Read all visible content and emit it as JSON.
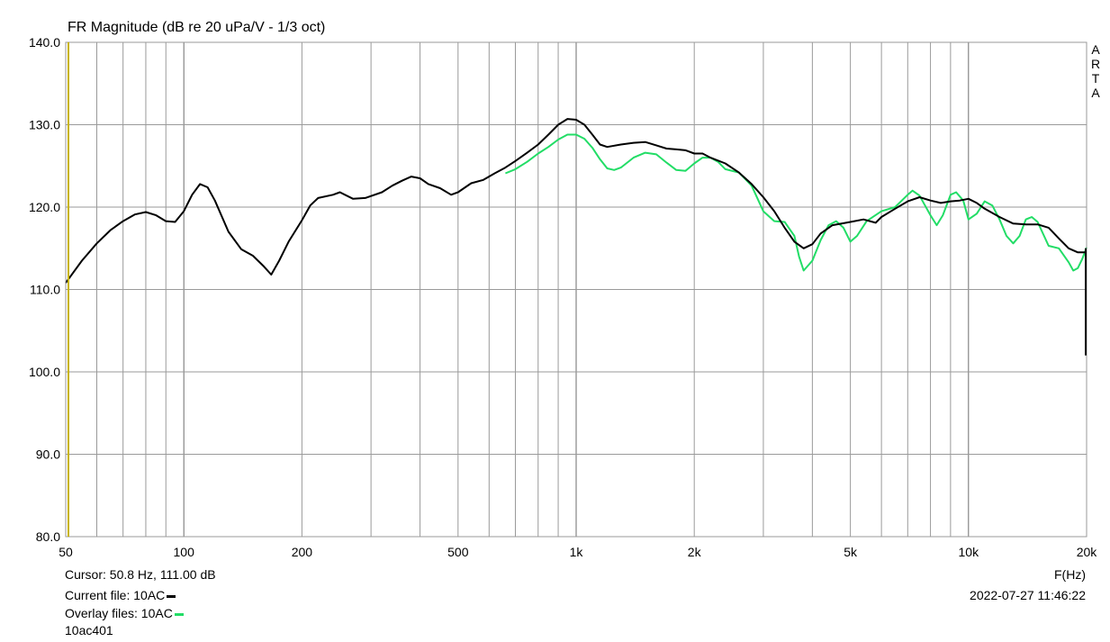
{
  "chart_data": {
    "type": "line",
    "title": "FR Magnitude (dB re 20 uPa/V - 1/3 oct)",
    "xlabel": "F(Hz)",
    "ylabel": "",
    "x_scale": "log",
    "xlim": [
      50,
      20000
    ],
    "ylim": [
      80,
      140
    ],
    "grid": true,
    "y_ticks": [
      "140.0",
      "130.0",
      "120.0",
      "110.0",
      "100.0",
      "90.0",
      "80.0"
    ],
    "x_ticks": [
      "50",
      "100",
      "200",
      "500",
      "1k",
      "2k",
      "5k",
      "10k",
      "20k"
    ],
    "series": [
      {
        "name": "10AC",
        "color": "#000000",
        "points": [
          [
            50,
            110.8
          ],
          [
            55,
            113.5
          ],
          [
            60,
            115.6
          ],
          [
            65,
            117.2
          ],
          [
            70,
            118.3
          ],
          [
            75,
            119.1
          ],
          [
            80,
            119.4
          ],
          [
            85,
            119.0
          ],
          [
            90,
            118.3
          ],
          [
            95,
            118.2
          ],
          [
            100,
            119.5
          ],
          [
            105,
            121.5
          ],
          [
            110,
            122.8
          ],
          [
            115,
            122.4
          ],
          [
            120,
            120.8
          ],
          [
            130,
            117.0
          ],
          [
            140,
            114.9
          ],
          [
            150,
            114.1
          ],
          [
            160,
            112.8
          ],
          [
            167,
            111.8
          ],
          [
            175,
            113.5
          ],
          [
            185,
            115.8
          ],
          [
            200,
            118.4
          ],
          [
            210,
            120.2
          ],
          [
            220,
            121.1
          ],
          [
            240,
            121.5
          ],
          [
            250,
            121.8
          ],
          [
            270,
            121.0
          ],
          [
            290,
            121.1
          ],
          [
            320,
            121.8
          ],
          [
            340,
            122.6
          ],
          [
            360,
            123.2
          ],
          [
            380,
            123.7
          ],
          [
            400,
            123.5
          ],
          [
            420,
            122.8
          ],
          [
            450,
            122.3
          ],
          [
            480,
            121.5
          ],
          [
            500,
            121.8
          ],
          [
            540,
            122.9
          ],
          [
            580,
            123.3
          ],
          [
            620,
            124.1
          ],
          [
            660,
            124.8
          ],
          [
            700,
            125.6
          ],
          [
            750,
            126.6
          ],
          [
            800,
            127.6
          ],
          [
            850,
            128.8
          ],
          [
            900,
            130.0
          ],
          [
            950,
            130.7
          ],
          [
            1000,
            130.6
          ],
          [
            1050,
            130.0
          ],
          [
            1100,
            128.8
          ],
          [
            1150,
            127.6
          ],
          [
            1200,
            127.3
          ],
          [
            1300,
            127.6
          ],
          [
            1400,
            127.8
          ],
          [
            1500,
            127.9
          ],
          [
            1600,
            127.5
          ],
          [
            1700,
            127.1
          ],
          [
            1800,
            127.0
          ],
          [
            1900,
            126.9
          ],
          [
            2000,
            126.5
          ],
          [
            2100,
            126.5
          ],
          [
            2200,
            126.0
          ],
          [
            2400,
            125.3
          ],
          [
            2600,
            124.2
          ],
          [
            2800,
            122.8
          ],
          [
            3000,
            121.2
          ],
          [
            3200,
            119.5
          ],
          [
            3400,
            117.5
          ],
          [
            3600,
            115.8
          ],
          [
            3800,
            115.0
          ],
          [
            4000,
            115.5
          ],
          [
            4200,
            116.8
          ],
          [
            4500,
            117.8
          ],
          [
            5000,
            118.2
          ],
          [
            5400,
            118.5
          ],
          [
            5800,
            118.1
          ],
          [
            6000,
            118.8
          ],
          [
            6500,
            119.8
          ],
          [
            7000,
            120.7
          ],
          [
            7500,
            121.2
          ],
          [
            8000,
            120.8
          ],
          [
            8500,
            120.5
          ],
          [
            9000,
            120.7
          ],
          [
            9500,
            120.8
          ],
          [
            10000,
            121.0
          ],
          [
            10500,
            120.5
          ],
          [
            11000,
            119.8
          ],
          [
            12000,
            118.8
          ],
          [
            13000,
            118.0
          ],
          [
            14000,
            117.9
          ],
          [
            15000,
            117.9
          ],
          [
            16000,
            117.5
          ],
          [
            17000,
            116.2
          ],
          [
            18000,
            115.0
          ],
          [
            19000,
            114.5
          ],
          [
            20000,
            114.5
          ]
        ]
      },
      {
        "name": "10AC",
        "color": "#22dd66",
        "points": [
          [
            660,
            124.1
          ],
          [
            700,
            124.6
          ],
          [
            750,
            125.5
          ],
          [
            800,
            126.5
          ],
          [
            850,
            127.3
          ],
          [
            900,
            128.2
          ],
          [
            950,
            128.8
          ],
          [
            1000,
            128.8
          ],
          [
            1050,
            128.3
          ],
          [
            1100,
            127.2
          ],
          [
            1150,
            125.8
          ],
          [
            1200,
            124.7
          ],
          [
            1250,
            124.5
          ],
          [
            1300,
            124.8
          ],
          [
            1400,
            126.0
          ],
          [
            1500,
            126.6
          ],
          [
            1600,
            126.4
          ],
          [
            1700,
            125.4
          ],
          [
            1800,
            124.5
          ],
          [
            1900,
            124.4
          ],
          [
            2000,
            125.3
          ],
          [
            2100,
            126.0
          ],
          [
            2200,
            126.0
          ],
          [
            2300,
            125.5
          ],
          [
            2400,
            124.6
          ],
          [
            2600,
            124.2
          ],
          [
            2800,
            122.6
          ],
          [
            3000,
            119.5
          ],
          [
            3200,
            118.3
          ],
          [
            3400,
            118.2
          ],
          [
            3600,
            116.5
          ],
          [
            3700,
            114.0
          ],
          [
            3800,
            112.3
          ],
          [
            4000,
            113.5
          ],
          [
            4200,
            116.0
          ],
          [
            4400,
            117.8
          ],
          [
            4600,
            118.3
          ],
          [
            4800,
            117.5
          ],
          [
            5000,
            115.8
          ],
          [
            5200,
            116.5
          ],
          [
            5500,
            118.3
          ],
          [
            6000,
            119.5
          ],
          [
            6500,
            120.0
          ],
          [
            7000,
            121.5
          ],
          [
            7200,
            122.0
          ],
          [
            7500,
            121.4
          ],
          [
            8000,
            119.0
          ],
          [
            8300,
            117.8
          ],
          [
            8600,
            119.0
          ],
          [
            9000,
            121.5
          ],
          [
            9300,
            121.8
          ],
          [
            9700,
            120.8
          ],
          [
            10000,
            118.5
          ],
          [
            10500,
            119.2
          ],
          [
            11000,
            120.7
          ],
          [
            11500,
            120.2
          ],
          [
            12000,
            118.5
          ],
          [
            12500,
            116.5
          ],
          [
            13000,
            115.6
          ],
          [
            13500,
            116.5
          ],
          [
            14000,
            118.5
          ],
          [
            14500,
            118.8
          ],
          [
            15000,
            118.2
          ],
          [
            16000,
            115.3
          ],
          [
            17000,
            115.0
          ],
          [
            18000,
            113.3
          ],
          [
            18500,
            112.3
          ],
          [
            19000,
            112.6
          ],
          [
            19500,
            113.7
          ],
          [
            20000,
            115.1
          ]
        ]
      }
    ]
  },
  "side_label": "ARTA",
  "cursor_text": "Cursor: 50.8 Hz, 111.00 dB",
  "current_file_text": "Current file: 10AC",
  "overlay_files_text": "Overlay files: 10AC",
  "file_id": "10ac401",
  "xaxis_unit": "F(Hz)",
  "datetime": "2022-07-27   11:46:22",
  "colors": {
    "grid": "#9a9a9a",
    "current": "#000000",
    "overlay": "#22dd66",
    "cursor": "#c8b400"
  }
}
